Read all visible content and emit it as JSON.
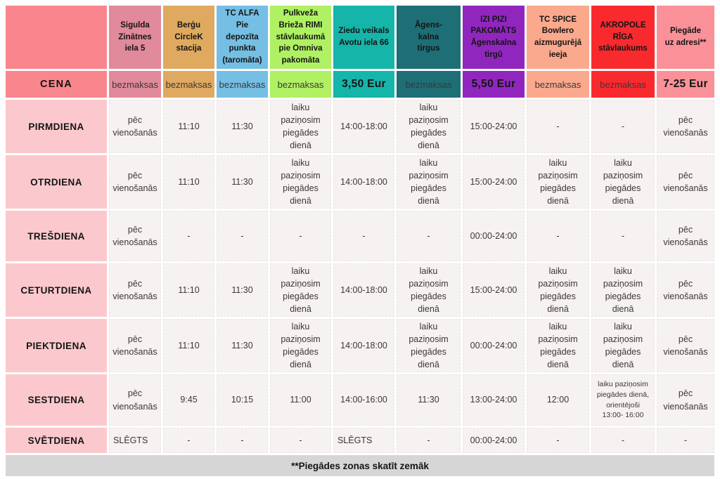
{
  "chart_data": {
    "type": "table",
    "title": "",
    "corner_label": "",
    "price_row_label": "CENA",
    "columns": [
      {
        "id": "sigulda",
        "label": "Sigulda\nZinātnes\niela 5",
        "color": "#E08A9B",
        "price": "bezmaksas"
      },
      {
        "id": "bergu-circlek",
        "label": "Berģu\nCircleK\nstacija",
        "color": "#DFAA5F",
        "price": "bezmaksas"
      },
      {
        "id": "tc-alfa",
        "label": "TC ALFA\nPie\ndepozīta\npunkta\n(taromāta)",
        "color": "#75BFE5",
        "price": "bezmaksas"
      },
      {
        "id": "pulkveza-rimi",
        "label": "Pulkveža\nBrieža RIMI\nstāvlaukumā\npie Omniva\npakomāta",
        "color": "#AFF163",
        "price": "bezmaksas"
      },
      {
        "id": "ziedu-veikals",
        "label": "Ziedu veikals\nAvotu iela 66",
        "color": "#15B5AA",
        "price": "3,50 Eur"
      },
      {
        "id": "agenskalna-tirgus",
        "label": "Āgens-\nkalna\ntirgus",
        "color": "#1E6E76",
        "price": "bezmaksas"
      },
      {
        "id": "izi-pizi",
        "label": "IZI PIZI\nPAKOMĀTS\nĀgenskalna\ntirgū",
        "color": "#9126BF",
        "price": "5,50 Eur"
      },
      {
        "id": "tc-spice",
        "label": "TC SPICE\nBowlero\naizmugurējā\nieeja",
        "color": "#FBA98D",
        "price": "bezmaksas"
      },
      {
        "id": "akropole",
        "label": "AKROPOLE\nRĪGA\nstāvlaukums",
        "color": "#F92A2E",
        "price": "bezmaksas"
      },
      {
        "id": "piegade-adrese",
        "label": "Piegāde\nuz adresi**",
        "color": "#FA9199",
        "price": "7-25 Eur"
      }
    ],
    "rows": [
      {
        "id": "pirmdiena",
        "label": "PIRMDIENA",
        "cells": [
          "pēc vienošanās",
          "11:10",
          "11:30",
          "laiku paziņosim piegādes dienā",
          "14:00-18:00",
          "laiku paziņosim piegādes dienā",
          "15:00-24:00",
          "-",
          "-",
          "pēc vienošanās"
        ]
      },
      {
        "id": "otrdiena",
        "label": "OTRDIENA",
        "cells": [
          "pēc vienošanās",
          "11:10",
          "11:30",
          "laiku paziņosim piegādes dienā",
          "14:00-18:00",
          "laiku paziņosim piegādes dienā",
          "15:00-24:00",
          "laiku paziņosim piegādes dienā",
          "laiku paziņosim piegādes dienā",
          "pēc vienošanās"
        ]
      },
      {
        "id": "tresdiena",
        "label": "TREŠDIENA",
        "cells": [
          "pēc vienošanās",
          "-",
          "-",
          "-",
          "-",
          "-",
          "00:00-24:00",
          "-",
          "-",
          "pēc vienošanās"
        ]
      },
      {
        "id": "ceturtdiena",
        "label": "CETURTDIENA",
        "cells": [
          "pēc vienošanās",
          "11:10",
          "11:30",
          "laiku paziņosim piegādes dienā",
          "14:00-18:00",
          "laiku paziņosim piegādes dienā",
          "15:00-24:00",
          "laiku paziņosim piegādes dienā",
          "laiku paziņosim piegādes dienā",
          "pēc vienošanās"
        ]
      },
      {
        "id": "piektdiena",
        "label": "PIEKTDIENA",
        "cells": [
          "pēc vienošanās",
          "11:10",
          "11:30",
          "laiku paziņosim piegādes dienā",
          "14:00-18:00",
          "laiku paziņosim piegādes dienā",
          "00:00-24:00",
          "laiku paziņosim piegādes dienā",
          "laiku paziņosim piegādes dienā",
          "pēc vienošanās"
        ]
      },
      {
        "id": "sestdiena",
        "label": "SESTDIENA",
        "cells": [
          "pēc vienošanās",
          "9:45",
          "10:15",
          "11:00",
          "14:00-16:00",
          "11:30",
          "13:00-24:00",
          "12:00",
          "laiku paziņosim piegādes dienā, orientējoši 13:00- 16:00",
          "pēc vienošanās"
        ]
      },
      {
        "id": "svetdiena",
        "label": "SVĒTDIENA",
        "cells": [
          "SLĒGTS",
          "-",
          "-",
          "-",
          "SLĒGTS",
          "-",
          "00:00-24:00",
          "-",
          "-",
          "-"
        ]
      }
    ],
    "footer_note": "**Piegādes zonas skatīt zemāk"
  },
  "colors": {
    "page_bg": "#FFFFFF",
    "corner_bg": "#F9868D",
    "day_label_bg": "#FBC9CD",
    "value_bg": "#F6F2F1",
    "value_text": "#3D3737",
    "header_text": "#141414",
    "footer_bg": "#D6D6D6"
  }
}
